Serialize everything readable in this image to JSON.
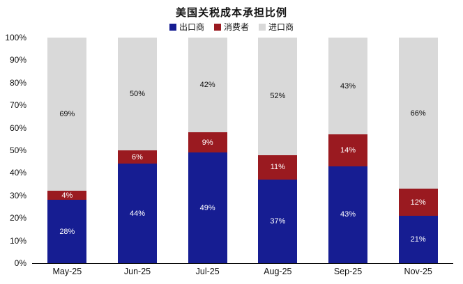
{
  "title": "美国关税成本承担比例",
  "chart_data": {
    "type": "bar",
    "stacked": true,
    "title": "美国关税成本承担比例",
    "categories": [
      "May-25",
      "Jun-25",
      "Jul-25",
      "Aug-25",
      "Sep-25",
      "Nov-25"
    ],
    "series": [
      {
        "name": "出口商",
        "color": "#161d92",
        "label_color": "#ffffff",
        "values": [
          28,
          44,
          49,
          37,
          43,
          21
        ]
      },
      {
        "name": "消费者",
        "color": "#9a1a20",
        "label_color": "#ffffff",
        "values": [
          4,
          6,
          9,
          11,
          14,
          12
        ]
      },
      {
        "name": "进口商",
        "color": "#d9d9d9",
        "label_color": "#111111",
        "values": [
          69,
          50,
          42,
          52,
          43,
          66
        ]
      }
    ],
    "ylim": [
      0,
      100
    ],
    "y_ticks": [
      "100%",
      "90%",
      "80%",
      "70%",
      "60%",
      "50%",
      "40%",
      "30%",
      "20%",
      "10%",
      "0%"
    ],
    "grid": false,
    "legend_position": "top",
    "value_suffix": "%"
  }
}
